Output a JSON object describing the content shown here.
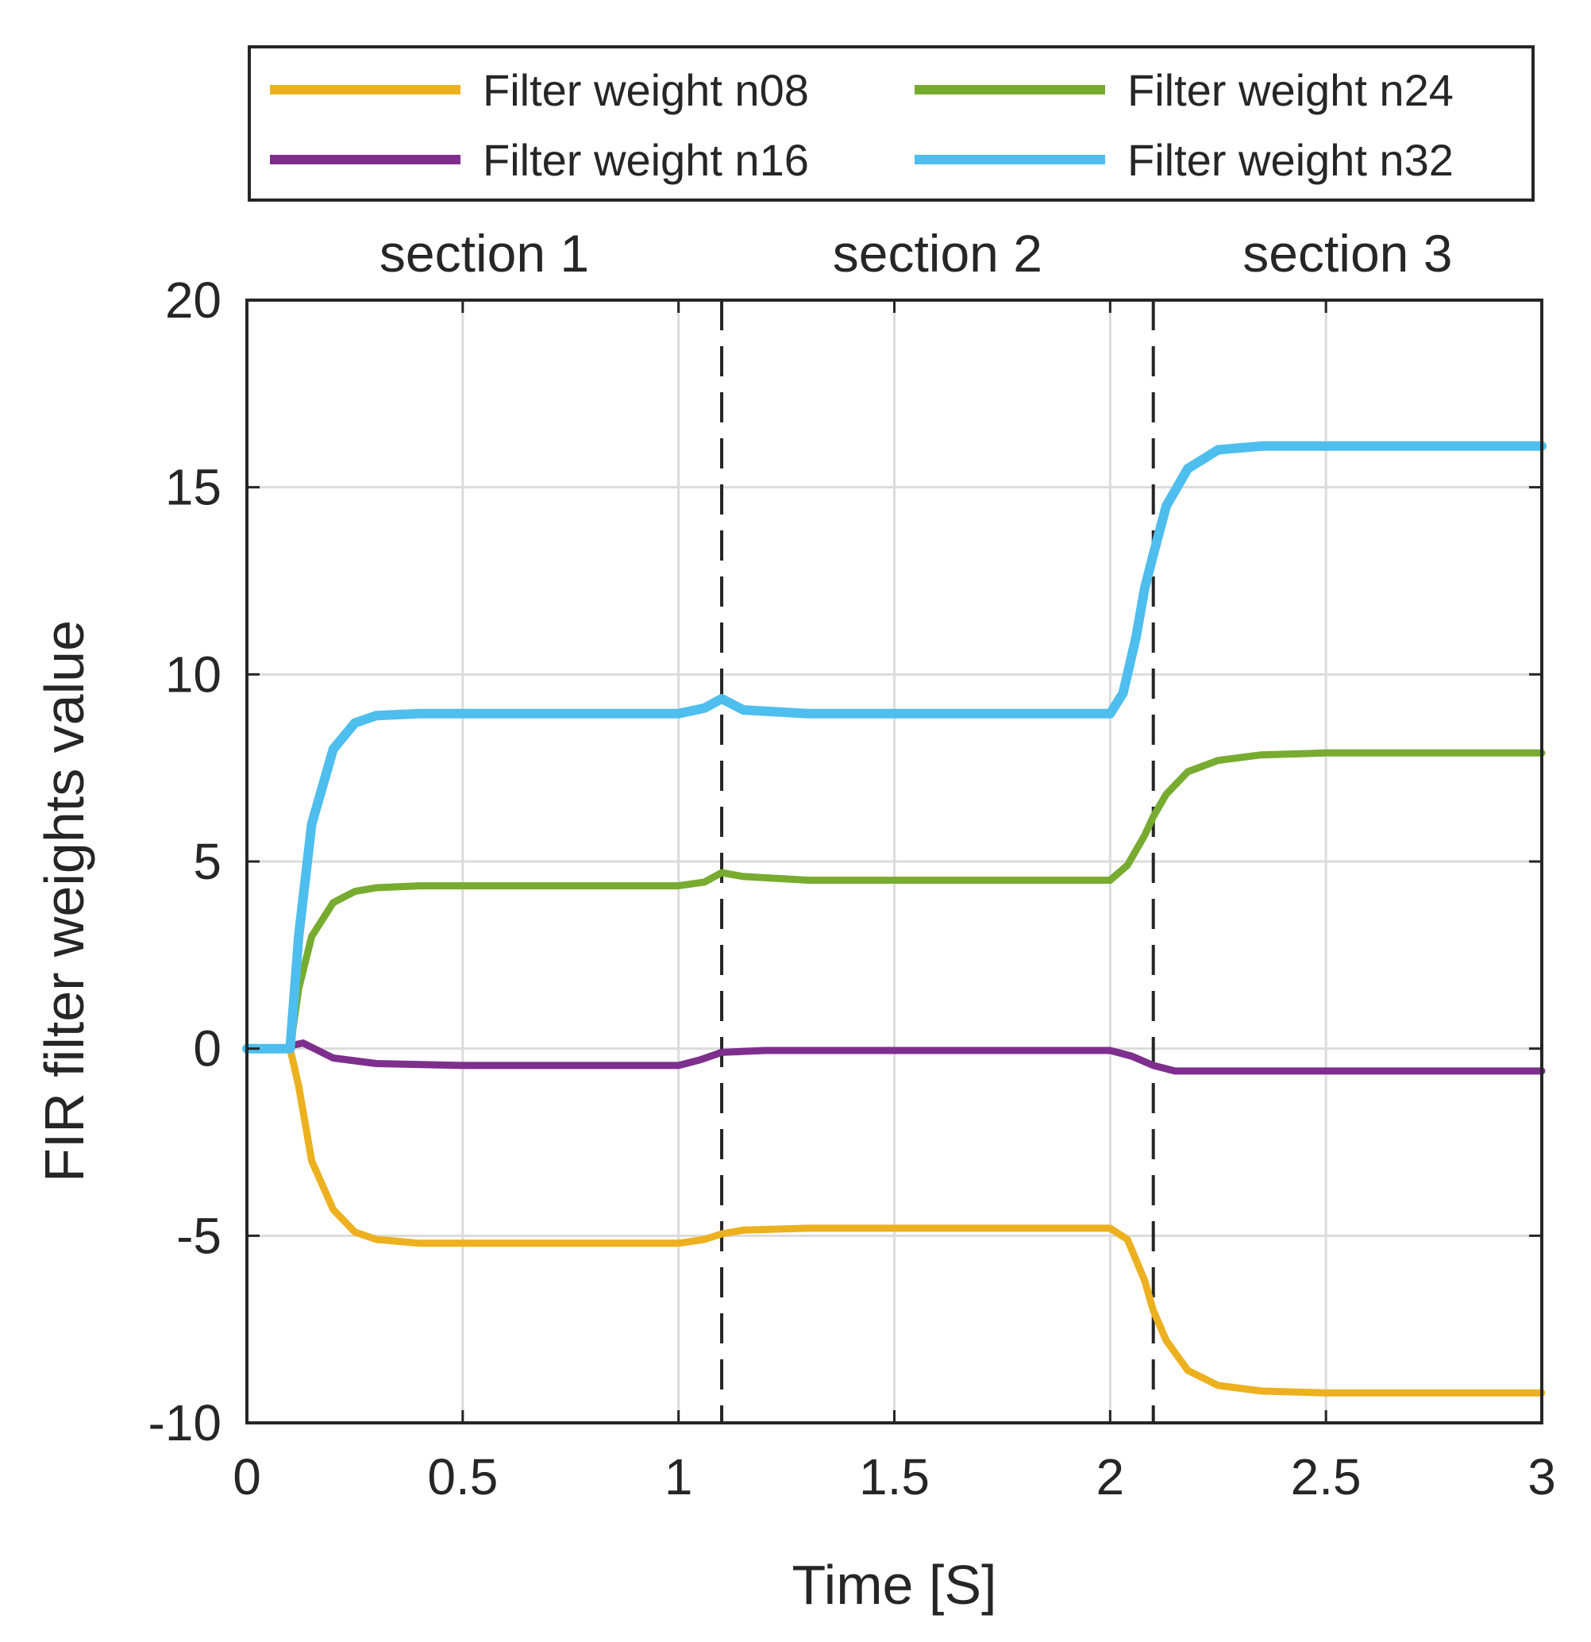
{
  "chart_data": {
    "type": "line",
    "title": "",
    "xlabel": "Time [S]",
    "ylabel": "FIR filter weights value",
    "xlim": [
      0,
      3
    ],
    "ylim": [
      -10,
      20
    ],
    "xticks": [
      0,
      0.5,
      1,
      1.5,
      2,
      2.5,
      3
    ],
    "xtick_labels": [
      "0",
      "0.5",
      "1",
      "1.5",
      "2",
      "2.5",
      "3"
    ],
    "yticks": [
      -10,
      -5,
      0,
      5,
      10,
      15,
      20
    ],
    "ytick_labels": [
      "-10",
      "-5",
      "0",
      "5",
      "10",
      "15",
      "20"
    ],
    "grid": true,
    "legend_position": "top",
    "section_boundaries": [
      1.1,
      2.1
    ],
    "sections": [
      {
        "label": "section 1",
        "x_center": 0.55
      },
      {
        "label": "section 2",
        "x_center": 1.6
      },
      {
        "label": "section 3",
        "x_center": 2.55
      }
    ],
    "series": [
      {
        "name": "Filter weight n08",
        "color": "#EDB120",
        "x": [
          0,
          0.09,
          0.1,
          0.12,
          0.15,
          0.2,
          0.25,
          0.3,
          0.4,
          0.6,
          0.8,
          1.0,
          1.06,
          1.1,
          1.15,
          1.3,
          1.6,
          1.9,
          2.0,
          2.04,
          2.08,
          2.1,
          2.13,
          2.18,
          2.25,
          2.35,
          2.5,
          2.75,
          3.0
        ],
        "values": [
          0,
          0,
          0,
          -1.0,
          -3.0,
          -4.3,
          -4.9,
          -5.1,
          -5.2,
          -5.2,
          -5.2,
          -5.2,
          -5.1,
          -4.95,
          -4.85,
          -4.8,
          -4.8,
          -4.8,
          -4.8,
          -5.1,
          -6.2,
          -7.0,
          -7.8,
          -8.6,
          -9.0,
          -9.15,
          -9.2,
          -9.2,
          -9.2
        ]
      },
      {
        "name": "Filter weight n16",
        "color": "#7E2F8E",
        "x": [
          0,
          0.09,
          0.11,
          0.13,
          0.2,
          0.3,
          0.5,
          0.8,
          1.0,
          1.05,
          1.1,
          1.2,
          1.5,
          1.9,
          2.0,
          2.05,
          2.1,
          2.15,
          2.3,
          2.6,
          3.0
        ],
        "values": [
          0,
          0,
          0.1,
          0.15,
          -0.25,
          -0.4,
          -0.45,
          -0.45,
          -0.45,
          -0.3,
          -0.1,
          -0.05,
          -0.05,
          -0.05,
          -0.05,
          -0.2,
          -0.45,
          -0.6,
          -0.6,
          -0.6,
          -0.6
        ]
      },
      {
        "name": "Filter weight n24",
        "color": "#77AC30",
        "x": [
          0,
          0.09,
          0.1,
          0.12,
          0.15,
          0.2,
          0.25,
          0.3,
          0.4,
          0.6,
          0.8,
          1.0,
          1.06,
          1.1,
          1.15,
          1.3,
          1.6,
          1.9,
          2.0,
          2.04,
          2.08,
          2.1,
          2.13,
          2.18,
          2.25,
          2.35,
          2.5,
          2.75,
          3.0
        ],
        "values": [
          0,
          0,
          0,
          1.6,
          3.0,
          3.9,
          4.2,
          4.3,
          4.35,
          4.35,
          4.35,
          4.35,
          4.45,
          4.7,
          4.6,
          4.5,
          4.5,
          4.5,
          4.5,
          4.9,
          5.7,
          6.2,
          6.8,
          7.4,
          7.7,
          7.85,
          7.9,
          7.9,
          7.9
        ]
      },
      {
        "name": "Filter weight n32",
        "color": "#4DBEEE",
        "x": [
          0,
          0.09,
          0.1,
          0.12,
          0.15,
          0.2,
          0.25,
          0.3,
          0.4,
          0.6,
          0.8,
          1.0,
          1.06,
          1.1,
          1.15,
          1.3,
          1.6,
          1.9,
          2.0,
          2.03,
          2.06,
          2.08,
          2.1,
          2.13,
          2.18,
          2.25,
          2.35,
          2.5,
          2.75,
          3.0
        ],
        "values": [
          0,
          0,
          0,
          3.0,
          6.0,
          8.0,
          8.7,
          8.9,
          8.95,
          8.95,
          8.95,
          8.95,
          9.1,
          9.35,
          9.05,
          8.95,
          8.95,
          8.95,
          8.95,
          9.5,
          11.0,
          12.3,
          13.2,
          14.5,
          15.5,
          16.0,
          16.1,
          16.1,
          16.1,
          16.1
        ]
      }
    ]
  }
}
